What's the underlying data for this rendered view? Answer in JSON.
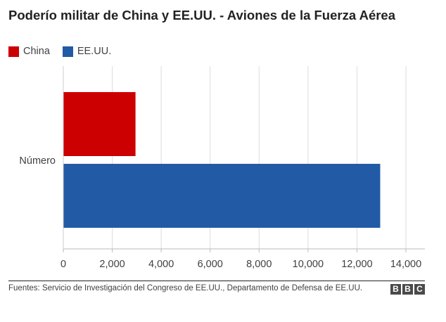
{
  "chart_data": {
    "type": "bar",
    "orientation": "horizontal",
    "title": "Poderío militar de China y EE.UU. - Aviones de la Fuerza Aérea",
    "categories": [
      "Número"
    ],
    "series": [
      {
        "name": "China",
        "values": [
          2950
        ],
        "color": "#cc0000"
      },
      {
        "name": "EE.UU.",
        "values": [
          12950
        ],
        "color": "#225aa6"
      }
    ],
    "xlim": [
      0,
      14000
    ],
    "xticks": [
      0,
      2000,
      4000,
      6000,
      8000,
      10000,
      12000,
      14000
    ],
    "xtick_labels": [
      "0",
      "2,000",
      "4,000",
      "6,000",
      "8,000",
      "10,000",
      "12,000",
      "14,000"
    ],
    "grid": "vertical",
    "legend_position": "top-left"
  },
  "footer": {
    "source": "Fuentes: Servicio de Investigación del Congreso de EE.UU., Departamento de Defensa de EE.UU.",
    "logo_letters": [
      "B",
      "B",
      "C"
    ]
  }
}
